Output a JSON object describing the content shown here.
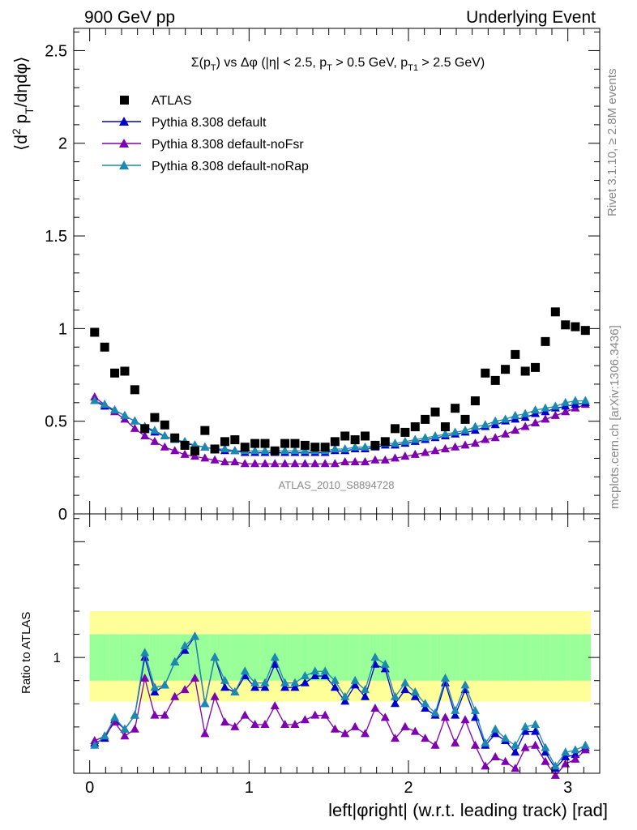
{
  "header": {
    "left": "900 GeV pp",
    "right": "Underlying Event"
  },
  "side_text": {
    "rivet": "Rivet 3.1.10, ≥ 2.8M events",
    "mcplots": "mcplots.cern.ch [arXiv:1306.3436]"
  },
  "watermark": "ATLAS_2010_S8894728",
  "colors": {
    "atlas": "#000000",
    "default": "#0000cc",
    "noFsr": "#7f00b0",
    "noRap": "#1a8ab0",
    "band_inner": "#99ff99",
    "band_outer": "#ffff99"
  },
  "chart_data": [
    {
      "type": "scatter",
      "title": "Σ(p_T) vs Δφ (|η| < 2.5, p_T > 0.5 GeV, p_T1 > 2.5 GeV)",
      "xlabel": "left|φright| (w.r.t. leading track) [rad]",
      "ylabel": "⟨d² p_T/dηdφ⟩",
      "xlim": [
        -0.1,
        3.2
      ],
      "ylim": [
        0,
        2.62
      ],
      "yticks": [
        "0",
        "0.5",
        "1",
        "1.5",
        "2",
        "2.5"
      ],
      "legend_position": "top-left",
      "x": [
        0.031,
        0.094,
        0.157,
        0.22,
        0.283,
        0.346,
        0.408,
        0.471,
        0.534,
        0.597,
        0.66,
        0.723,
        0.785,
        0.848,
        0.911,
        0.974,
        1.037,
        1.1,
        1.162,
        1.225,
        1.288,
        1.351,
        1.414,
        1.477,
        1.539,
        1.602,
        1.665,
        1.728,
        1.791,
        1.854,
        1.916,
        1.979,
        2.042,
        2.105,
        2.168,
        2.231,
        2.293,
        2.356,
        2.419,
        2.482,
        2.545,
        2.608,
        2.67,
        2.733,
        2.796,
        2.859,
        2.922,
        2.985,
        3.047,
        3.11
      ],
      "series": [
        {
          "name": "ATLAS",
          "marker": "square",
          "values": [
            0.98,
            0.9,
            0.76,
            0.77,
            0.67,
            0.46,
            0.52,
            0.48,
            0.41,
            0.37,
            0.34,
            0.45,
            0.35,
            0.39,
            0.4,
            0.36,
            0.38,
            0.38,
            0.34,
            0.38,
            0.38,
            0.37,
            0.36,
            0.36,
            0.39,
            0.42,
            0.4,
            0.42,
            0.37,
            0.39,
            0.46,
            0.44,
            0.47,
            0.51,
            0.55,
            0.47,
            0.57,
            0.51,
            0.61,
            0.76,
            0.72,
            0.78,
            0.86,
            0.77,
            0.79,
            0.93,
            1.09,
            1.02,
            1.01,
            0.99
          ]
        },
        {
          "name": "Pythia 8.308 default",
          "marker": "triangle",
          "values": [
            0.61,
            0.58,
            0.56,
            0.53,
            0.5,
            0.47,
            0.44,
            0.42,
            0.4,
            0.38,
            0.37,
            0.36,
            0.35,
            0.34,
            0.34,
            0.33,
            0.33,
            0.33,
            0.33,
            0.33,
            0.33,
            0.33,
            0.33,
            0.33,
            0.34,
            0.34,
            0.35,
            0.35,
            0.36,
            0.37,
            0.37,
            0.38,
            0.39,
            0.4,
            0.41,
            0.42,
            0.43,
            0.44,
            0.45,
            0.47,
            0.48,
            0.5,
            0.51,
            0.52,
            0.54,
            0.55,
            0.57,
            0.58,
            0.59,
            0.6
          ]
        },
        {
          "name": "Pythia 8.308 default-noFsr",
          "marker": "triangle",
          "values": [
            0.63,
            0.59,
            0.55,
            0.51,
            0.46,
            0.42,
            0.39,
            0.36,
            0.34,
            0.32,
            0.31,
            0.3,
            0.29,
            0.28,
            0.28,
            0.27,
            0.27,
            0.27,
            0.27,
            0.27,
            0.27,
            0.27,
            0.27,
            0.27,
            0.27,
            0.28,
            0.28,
            0.28,
            0.29,
            0.29,
            0.3,
            0.31,
            0.32,
            0.33,
            0.34,
            0.35,
            0.36,
            0.37,
            0.38,
            0.4,
            0.41,
            0.43,
            0.45,
            0.47,
            0.49,
            0.51,
            0.53,
            0.55,
            0.57,
            0.59
          ]
        },
        {
          "name": "Pythia 8.308 default-noRap",
          "marker": "triangle",
          "values": [
            0.61,
            0.59,
            0.56,
            0.53,
            0.5,
            0.47,
            0.45,
            0.42,
            0.4,
            0.39,
            0.37,
            0.36,
            0.35,
            0.35,
            0.34,
            0.34,
            0.34,
            0.34,
            0.34,
            0.34,
            0.34,
            0.34,
            0.34,
            0.34,
            0.35,
            0.35,
            0.36,
            0.36,
            0.37,
            0.38,
            0.38,
            0.39,
            0.4,
            0.41,
            0.42,
            0.43,
            0.44,
            0.45,
            0.47,
            0.48,
            0.5,
            0.51,
            0.53,
            0.54,
            0.56,
            0.57,
            0.58,
            0.6,
            0.61,
            0.61
          ]
        }
      ]
    },
    {
      "type": "line",
      "ylabel": "Ratio to ATLAS",
      "xlabel": "left|φright| (w.r.t. leading track) [rad]",
      "xlim": [
        -0.1,
        3.2
      ],
      "ylim": [
        0.5,
        1.62
      ],
      "yticks": [
        "1"
      ],
      "xticks": [
        "0",
        "1",
        "2",
        "3"
      ],
      "x": [
        0.031,
        0.094,
        0.157,
        0.22,
        0.283,
        0.346,
        0.408,
        0.471,
        0.534,
        0.597,
        0.66,
        0.723,
        0.785,
        0.848,
        0.911,
        0.974,
        1.037,
        1.1,
        1.162,
        1.225,
        1.288,
        1.351,
        1.414,
        1.477,
        1.539,
        1.602,
        1.665,
        1.728,
        1.791,
        1.854,
        1.916,
        1.979,
        2.042,
        2.105,
        2.168,
        2.231,
        2.293,
        2.356,
        2.419,
        2.482,
        2.545,
        2.608,
        2.67,
        2.733,
        2.796,
        2.859,
        2.922,
        2.985,
        3.047,
        3.11
      ],
      "bands": {
        "inner": [
          0.1,
          0.1
        ],
        "outer": [
          0.2,
          0.19
        ]
      },
      "series": [
        {
          "name": "Pythia 8.308 default",
          "values": [
            0.63,
            0.65,
            0.73,
            0.69,
            0.75,
            1.0,
            0.85,
            0.88,
            0.98,
            1.03,
            1.09,
            0.8,
            1.0,
            0.87,
            0.85,
            0.92,
            0.87,
            0.87,
            0.97,
            0.87,
            0.87,
            0.89,
            0.92,
            0.92,
            0.87,
            0.81,
            0.88,
            0.83,
            0.97,
            0.95,
            0.8,
            0.86,
            0.83,
            0.78,
            0.75,
            0.89,
            0.75,
            0.86,
            0.74,
            0.62,
            0.67,
            0.64,
            0.59,
            0.68,
            0.68,
            0.59,
            0.52,
            0.57,
            0.58,
            0.61
          ]
        },
        {
          "name": "Pythia 8.308 default-noFsr",
          "values": [
            0.64,
            0.66,
            0.72,
            0.66,
            0.69,
            0.91,
            0.75,
            0.75,
            0.83,
            0.86,
            0.91,
            0.67,
            0.83,
            0.72,
            0.7,
            0.75,
            0.71,
            0.71,
            0.79,
            0.71,
            0.71,
            0.73,
            0.75,
            0.75,
            0.69,
            0.67,
            0.7,
            0.67,
            0.78,
            0.74,
            0.65,
            0.7,
            0.68,
            0.65,
            0.62,
            0.74,
            0.63,
            0.73,
            0.62,
            0.53,
            0.57,
            0.55,
            0.52,
            0.61,
            0.62,
            0.55,
            0.49,
            0.54,
            0.56,
            0.6
          ]
        },
        {
          "name": "Pythia 8.308 default-noRap",
          "values": [
            0.62,
            0.66,
            0.74,
            0.69,
            0.75,
            1.02,
            0.87,
            0.88,
            0.98,
            1.05,
            1.09,
            0.8,
            1.0,
            0.9,
            0.85,
            0.94,
            0.89,
            0.89,
            1.0,
            0.89,
            0.89,
            0.92,
            0.94,
            0.94,
            0.9,
            0.83,
            0.9,
            0.86,
            1.0,
            0.97,
            0.83,
            0.89,
            0.85,
            0.8,
            0.76,
            0.91,
            0.77,
            0.88,
            0.77,
            0.63,
            0.69,
            0.65,
            0.62,
            0.7,
            0.71,
            0.61,
            0.53,
            0.59,
            0.6,
            0.62
          ]
        }
      ]
    }
  ]
}
